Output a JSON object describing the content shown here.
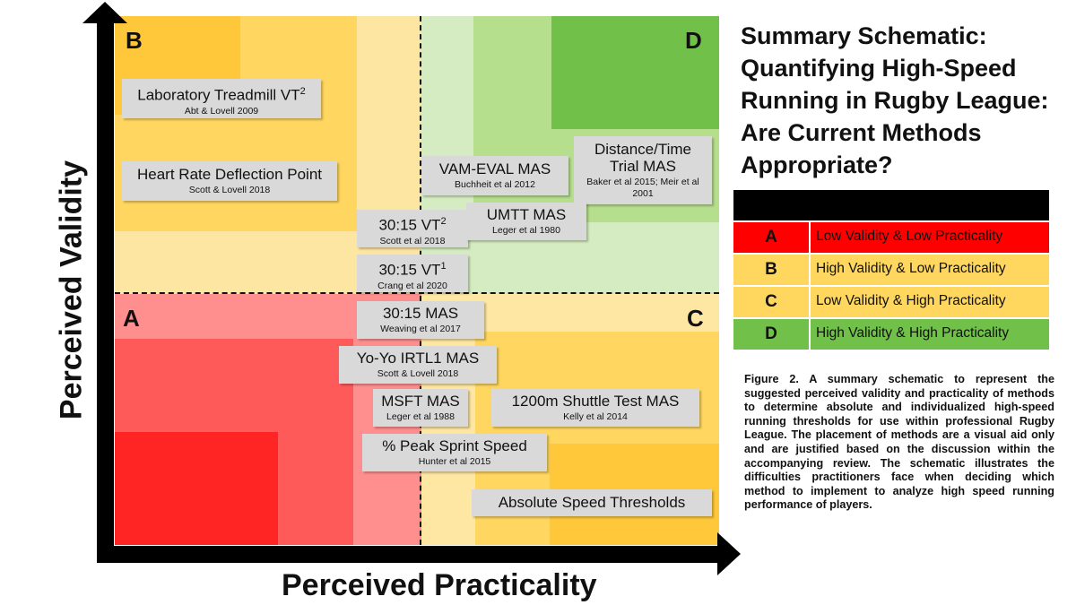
{
  "title": "Summary Schematic: Quantifying High-Speed Running in Rugby League: Are Current Methods Appropriate?",
  "axes": {
    "x_label": "Perceived Practicality",
    "y_label": "Perceived Validity"
  },
  "quadrant_letters": {
    "A": "A",
    "B": "B",
    "C": "C",
    "D": "D"
  },
  "methods": [
    {
      "name": "Laboratory Treadmill VT",
      "sup": "2",
      "citation": "Abt & Lovell 2009"
    },
    {
      "name": "Heart Rate Deflection Point",
      "sup": "",
      "citation": "Scott & Lovell 2018"
    },
    {
      "name": "30:15 VT",
      "sup": "2",
      "citation": "Scott et al 2018"
    },
    {
      "name": "30:15 VT",
      "sup": "1",
      "citation": "Crang et al 2020"
    },
    {
      "name": "VAM-EVAL MAS",
      "sup": "",
      "citation": "Buchheit et al 2012"
    },
    {
      "name": "Distance/Time Trial MAS",
      "sup": "",
      "citation": "Baker et al 2015; Meir et al 2001"
    },
    {
      "name": "UMTT MAS",
      "sup": "",
      "citation": "Leger et al 1980"
    },
    {
      "name": "30:15 MAS",
      "sup": "",
      "citation": "Weaving et al 2017"
    },
    {
      "name": "Yo-Yo IRTL1 MAS",
      "sup": "",
      "citation": "Scott & Lovell 2018"
    },
    {
      "name": "MSFT MAS",
      "sup": "",
      "citation": "Leger et al 1988"
    },
    {
      "name": "1200m Shuttle Test MAS",
      "sup": "",
      "citation": "Kelly et al 2014"
    },
    {
      "name": "% Peak Sprint Speed",
      "sup": "",
      "citation": "Hunter et al 2015"
    },
    {
      "name": "Absolute Speed Thresholds",
      "sup": "",
      "citation": ""
    }
  ],
  "legend": [
    {
      "key": "A",
      "text": "Low Validity & Low Practicality",
      "color": "#ff0000"
    },
    {
      "key": "B",
      "text": "High Validity & Low Practicality",
      "color": "#ffd75e"
    },
    {
      "key": "C",
      "text": "Low Validity & High Practicality",
      "color": "#ffd75e"
    },
    {
      "key": "D",
      "text": "High Validity & High Practicality",
      "color": "#70c04a"
    }
  ],
  "caption": "Figure 2. A summary schematic to represent the suggested perceived validity and practicality of methods to determine absolute and individualized high-speed running thresholds for use within professional Rugby League. The placement of methods are a visual aid only and are justified based on the discussion within the accompanying review. The schematic illustrates the difficulties practitioners face when deciding which method to implement to analyze high speed running performance of players."
}
